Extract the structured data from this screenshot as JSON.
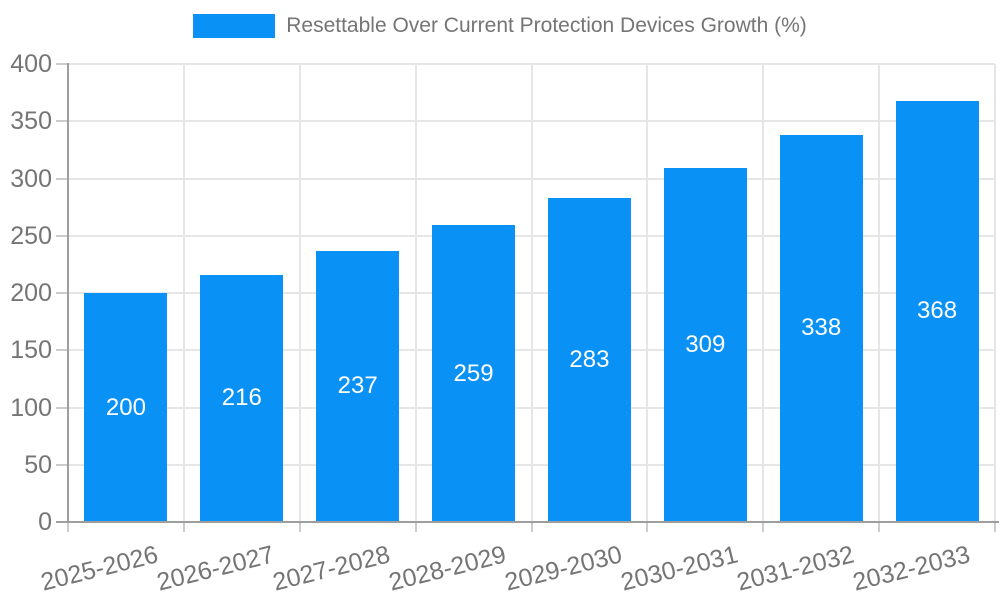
{
  "page": {
    "background": "#ffffff"
  },
  "legend": {
    "label": "Resettable Over Current Protection Devices Growth (%)",
    "swatch_color": "#0991f5"
  },
  "chart_data": {
    "type": "bar",
    "title": "Resettable Over Current Protection Devices Growth (%)",
    "series": [
      {
        "name": "Resettable Over Current Protection Devices Growth (%)",
        "values": [
          200,
          216,
          237,
          259,
          283,
          309,
          338,
          368
        ]
      }
    ],
    "categories": [
      "2025-2026",
      "2026-2027",
      "2027-2028",
      "2028-2029",
      "2029-2030",
      "2030-2031",
      "2031-2032",
      "2032-2033"
    ],
    "value_labels": [
      "200",
      "216",
      "237",
      "259",
      "283",
      "309",
      "338",
      "368"
    ],
    "xlabel": "",
    "ylabel": "",
    "ylim": [
      0,
      400
    ],
    "yticks": [
      0,
      50,
      100,
      150,
      200,
      250,
      300,
      350,
      400
    ],
    "grid": true,
    "legend_position": "top",
    "bar_color": "#0991f5",
    "value_label_color": "#ffffff",
    "axis_text_color": "#757575",
    "axis_line_color": "#9e9e9e",
    "gridline_color": "#e6e6e6",
    "tick_color": "#cccccc"
  }
}
